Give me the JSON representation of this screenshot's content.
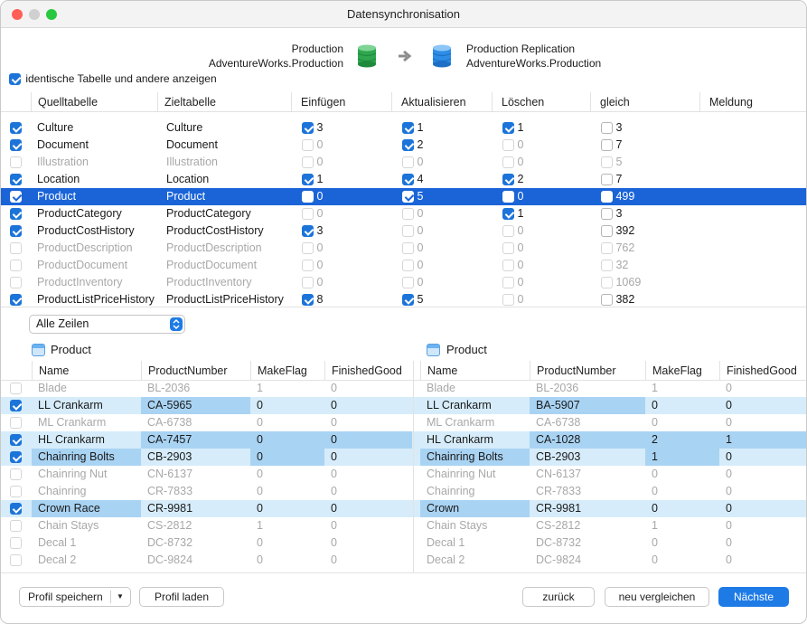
{
  "window": {
    "title": "Datensynchronisation"
  },
  "source": {
    "server": "Production",
    "database": "AdventureWorks.Production"
  },
  "target": {
    "server": "Production Replication",
    "database": "AdventureWorks.Production"
  },
  "show_identical_label": "identische Tabelle und andere anzeigen",
  "tables_header": [
    "Quelltabelle",
    "Zieltabelle",
    "Einfügen",
    "Aktualisieren",
    "Löschen",
    "gleich",
    "Meldung"
  ],
  "tables": [
    {
      "checked": true,
      "dim": false,
      "sel": false,
      "source": "Culture",
      "target": "Culture",
      "insert": {
        "on": true,
        "n": "3"
      },
      "update": {
        "on": true,
        "n": "1"
      },
      "delete": {
        "on": true,
        "n": "1"
      },
      "equal": {
        "on": false,
        "n": "3"
      }
    },
    {
      "checked": true,
      "dim": false,
      "sel": false,
      "source": "Document",
      "target": "Document",
      "insert": {
        "on": false,
        "n": "0"
      },
      "update": {
        "on": true,
        "n": "2"
      },
      "delete": {
        "on": false,
        "n": "0"
      },
      "equal": {
        "on": false,
        "n": "7"
      }
    },
    {
      "checked": false,
      "dim": true,
      "sel": false,
      "source": "Illustration",
      "target": "Illustration",
      "insert": {
        "on": false,
        "n": "0"
      },
      "update": {
        "on": false,
        "n": "0"
      },
      "delete": {
        "on": false,
        "n": "0"
      },
      "equal": {
        "on": false,
        "n": "5"
      }
    },
    {
      "checked": true,
      "dim": false,
      "sel": false,
      "source": "Location",
      "target": "Location",
      "insert": {
        "on": true,
        "n": "1"
      },
      "update": {
        "on": true,
        "n": "4"
      },
      "delete": {
        "on": true,
        "n": "2"
      },
      "equal": {
        "on": false,
        "n": "7"
      }
    },
    {
      "checked": true,
      "dim": false,
      "sel": true,
      "source": "Product",
      "target": "Product",
      "insert": {
        "on": false,
        "n": "0"
      },
      "update": {
        "on": true,
        "n": "5"
      },
      "delete": {
        "on": false,
        "n": "0"
      },
      "equal": {
        "on": false,
        "n": "499"
      }
    },
    {
      "checked": true,
      "dim": false,
      "sel": false,
      "source": "ProductCategory",
      "target": "ProductCategory",
      "insert": {
        "on": false,
        "n": "0"
      },
      "update": {
        "on": false,
        "n": "0"
      },
      "delete": {
        "on": true,
        "n": "1"
      },
      "equal": {
        "on": false,
        "n": "3"
      }
    },
    {
      "checked": true,
      "dim": false,
      "sel": false,
      "source": "ProductCostHistory",
      "target": "ProductCostHistory",
      "insert": {
        "on": true,
        "n": "3"
      },
      "update": {
        "on": false,
        "n": "0"
      },
      "delete": {
        "on": false,
        "n": "0"
      },
      "equal": {
        "on": false,
        "n": "392"
      }
    },
    {
      "checked": false,
      "dim": true,
      "sel": false,
      "source": "ProductDescription",
      "target": "ProductDescription",
      "insert": {
        "on": false,
        "n": "0"
      },
      "update": {
        "on": false,
        "n": "0"
      },
      "delete": {
        "on": false,
        "n": "0"
      },
      "equal": {
        "on": false,
        "n": "762"
      }
    },
    {
      "checked": false,
      "dim": true,
      "sel": false,
      "source": "ProductDocument",
      "target": "ProductDocument",
      "insert": {
        "on": false,
        "n": "0"
      },
      "update": {
        "on": false,
        "n": "0"
      },
      "delete": {
        "on": false,
        "n": "0"
      },
      "equal": {
        "on": false,
        "n": "32"
      }
    },
    {
      "checked": false,
      "dim": true,
      "sel": false,
      "source": "ProductInventory",
      "target": "ProductInventory",
      "insert": {
        "on": false,
        "n": "0"
      },
      "update": {
        "on": false,
        "n": "0"
      },
      "delete": {
        "on": false,
        "n": "0"
      },
      "equal": {
        "on": false,
        "n": "1069"
      }
    },
    {
      "checked": true,
      "dim": false,
      "sel": false,
      "source": "ProductListPriceHistory",
      "target": "ProductListPriceHistory",
      "insert": {
        "on": true,
        "n": "8"
      },
      "update": {
        "on": true,
        "n": "5"
      },
      "delete": {
        "on": false,
        "n": "0"
      },
      "equal": {
        "on": false,
        "n": "382"
      }
    }
  ],
  "row_filter": {
    "selected": "Alle Zeilen"
  },
  "left_grid": {
    "title": "Product",
    "columns": [
      "Name",
      "ProductNumber",
      "MakeFlag",
      "FinishedGood"
    ],
    "rows": [
      {
        "checked": false,
        "hl": false,
        "dim": true,
        "cells": [
          "Blade",
          "BL-2036",
          "1",
          "0"
        ],
        "diff": [
          false,
          false,
          false,
          false
        ]
      },
      {
        "checked": true,
        "hl": true,
        "dim": false,
        "cells": [
          "LL Crankarm",
          "CA-5965",
          "0",
          "0"
        ],
        "diff": [
          false,
          true,
          false,
          false
        ]
      },
      {
        "checked": false,
        "hl": false,
        "dim": true,
        "cells": [
          "ML Crankarm",
          "CA-6738",
          "0",
          "0"
        ],
        "diff": [
          false,
          false,
          false,
          false
        ]
      },
      {
        "checked": true,
        "hl": true,
        "dim": false,
        "cells": [
          "HL Crankarm",
          "CA-7457",
          "0",
          "0"
        ],
        "diff": [
          false,
          true,
          true,
          true
        ]
      },
      {
        "checked": true,
        "hl": true,
        "dim": false,
        "cells": [
          "Chainring Bolts",
          "CB-2903",
          "0",
          "0"
        ],
        "diff": [
          true,
          false,
          true,
          false
        ]
      },
      {
        "checked": false,
        "hl": false,
        "dim": true,
        "cells": [
          "Chainring Nut",
          "CN-6137",
          "0",
          "0"
        ],
        "diff": [
          false,
          false,
          false,
          false
        ]
      },
      {
        "checked": false,
        "hl": false,
        "dim": true,
        "cells": [
          "Chainring",
          "CR-7833",
          "0",
          "0"
        ],
        "diff": [
          false,
          false,
          false,
          false
        ]
      },
      {
        "checked": true,
        "hl": true,
        "dim": false,
        "cells": [
          "Crown Race",
          "CR-9981",
          "0",
          "0"
        ],
        "diff": [
          true,
          false,
          false,
          false
        ]
      },
      {
        "checked": false,
        "hl": false,
        "dim": true,
        "cells": [
          "Chain Stays",
          "CS-2812",
          "1",
          "0"
        ],
        "diff": [
          false,
          false,
          false,
          false
        ]
      },
      {
        "checked": false,
        "hl": false,
        "dim": true,
        "cells": [
          "Decal 1",
          "DC-8732",
          "0",
          "0"
        ],
        "diff": [
          false,
          false,
          false,
          false
        ]
      },
      {
        "checked": false,
        "hl": false,
        "dim": true,
        "cells": [
          "Decal 2",
          "DC-9824",
          "0",
          "0"
        ],
        "diff": [
          false,
          false,
          false,
          false
        ]
      }
    ]
  },
  "right_grid": {
    "title": "Product",
    "columns": [
      "Name",
      "ProductNumber",
      "MakeFlag",
      "FinishedGood"
    ],
    "rows": [
      {
        "hl": false,
        "dim": true,
        "cells": [
          "Blade",
          "BL-2036",
          "1",
          "0"
        ],
        "diff": [
          false,
          false,
          false,
          false
        ]
      },
      {
        "hl": true,
        "dim": false,
        "cells": [
          "LL Crankarm",
          "BA-5907",
          "0",
          "0"
        ],
        "diff": [
          false,
          true,
          false,
          false
        ]
      },
      {
        "hl": false,
        "dim": true,
        "cells": [
          "ML Crankarm",
          "CA-6738",
          "0",
          "0"
        ],
        "diff": [
          false,
          false,
          false,
          false
        ]
      },
      {
        "hl": true,
        "dim": false,
        "cells": [
          "HL Crankarm",
          "CA-1028",
          "2",
          "1"
        ],
        "diff": [
          false,
          true,
          true,
          true
        ]
      },
      {
        "hl": true,
        "dim": false,
        "cells": [
          "Chainring Bolts",
          "CB-2903",
          "1",
          "0"
        ],
        "diff": [
          true,
          false,
          true,
          false
        ]
      },
      {
        "hl": false,
        "dim": true,
        "cells": [
          "Chainring Nut",
          "CN-6137",
          "0",
          "0"
        ],
        "diff": [
          false,
          false,
          false,
          false
        ]
      },
      {
        "hl": false,
        "dim": true,
        "cells": [
          "Chainring",
          "CR-7833",
          "0",
          "0"
        ],
        "diff": [
          false,
          false,
          false,
          false
        ]
      },
      {
        "hl": true,
        "dim": false,
        "cells": [
          "Crown",
          "CR-9981",
          "0",
          "0"
        ],
        "diff": [
          true,
          false,
          false,
          false
        ]
      },
      {
        "hl": false,
        "dim": true,
        "cells": [
          "Chain Stays",
          "CS-2812",
          "1",
          "0"
        ],
        "diff": [
          false,
          false,
          false,
          false
        ]
      },
      {
        "hl": false,
        "dim": true,
        "cells": [
          "Decal 1",
          "DC-8732",
          "0",
          "0"
        ],
        "diff": [
          false,
          false,
          false,
          false
        ]
      },
      {
        "hl": false,
        "dim": true,
        "cells": [
          "Decal 2",
          "DC-9824",
          "0",
          "0"
        ],
        "diff": [
          false,
          false,
          false,
          false
        ]
      }
    ]
  },
  "buttons": {
    "save_profile": "Profil speichern",
    "load_profile": "Profil laden",
    "back": "zurück",
    "compare_again": "neu vergleichen",
    "next": "Nächste"
  },
  "icons": {
    "source_db": "green-database-icon",
    "arrow": "arrow-right-icon",
    "target_db": "blue-database-icon",
    "table": "table-icon"
  },
  "colors": {
    "accent": "#1e7be6",
    "selection": "#1a64d8",
    "row_highlight": "#d6ecfa",
    "diff_cell": "#a9d3f3",
    "source_db": "#2fa64f",
    "target_db": "#2d8de6"
  }
}
